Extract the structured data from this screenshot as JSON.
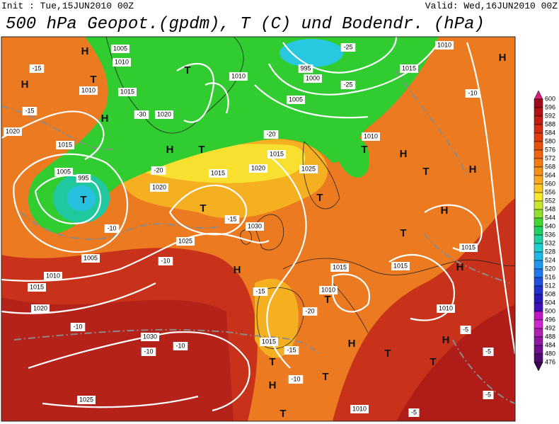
{
  "header": {
    "init": "Init : Tue,15JUN2010 00Z",
    "valid": "Valid: Wed,16JUN2010 00Z",
    "title": "500 hPa Geopot.(gpdm), T (C) und Bodendr. (hPa)"
  },
  "colorbar": {
    "levels": [
      600,
      596,
      592,
      588,
      584,
      580,
      576,
      572,
      568,
      564,
      560,
      556,
      552,
      548,
      544,
      540,
      536,
      532,
      528,
      524,
      520,
      516,
      512,
      508,
      504,
      500,
      496,
      492,
      488,
      484,
      480,
      476
    ],
    "colors": [
      "#d81e78",
      "#a0081c",
      "#b41018",
      "#c41c14",
      "#d42c10",
      "#e03c0c",
      "#e8500c",
      "#f06410",
      "#f47a14",
      "#f89018",
      "#fca820",
      "#fcc828",
      "#f8e830",
      "#c8e830",
      "#90e030",
      "#40d830",
      "#20d060",
      "#20d0a0",
      "#20d0d0",
      "#20b8e8",
      "#2098f0",
      "#2078f0",
      "#2050e0",
      "#2030d0",
      "#2818c0",
      "#4010b8",
      "#c018c0",
      "#d028d0",
      "#b020b0",
      "#9018a0",
      "#701090",
      "#500a70",
      "#3a0650"
    ]
  },
  "map_labels": [
    "H",
    "T",
    "H",
    "H",
    "1010",
    "-15",
    "-15",
    "1020",
    "1015",
    "1005",
    "1010",
    "T",
    "1015",
    "1020",
    "-30",
    "H",
    "T",
    "1010",
    "995",
    "1000",
    "1005",
    "-25",
    "-25",
    "1010",
    "H",
    "1015",
    "-10",
    "1010",
    "T",
    "H",
    "-20",
    "1015",
    "1020",
    "1025",
    "1015",
    "-20",
    "1020",
    "T",
    "1005",
    "995",
    "T",
    "T",
    "1030",
    "-15",
    "-10",
    "1025",
    "1005",
    "1010",
    "-10",
    "1015",
    "H",
    "1020",
    "-15",
    "1015",
    "T",
    "1010",
    "-20",
    "1015",
    "1010",
    "1015",
    "H",
    "T",
    "H",
    "T",
    "H",
    "1030",
    "-10",
    "-10",
    "-10",
    "1015",
    "-15",
    "T",
    "H",
    "T",
    "H",
    "-5",
    "-5",
    "H",
    "-10",
    "1025",
    "T",
    "1010",
    "-5",
    "T",
    "T",
    "-5"
  ]
}
